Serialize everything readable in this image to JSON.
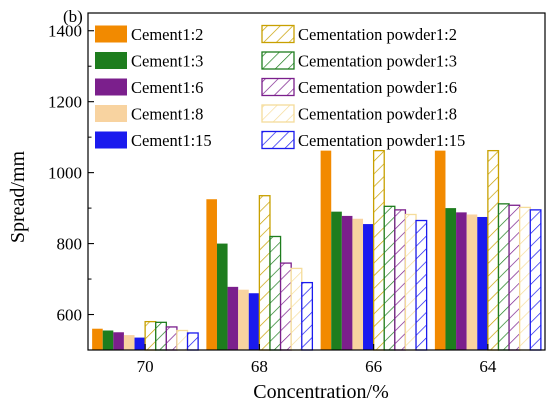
{
  "panel_label": "(b)",
  "chart_data": {
    "type": "bar",
    "xlabel": "Concentration/%",
    "ylabel": "Spread/mm",
    "categories": [
      "70",
      "68",
      "66",
      "64"
    ],
    "ylim": [
      500,
      1450
    ],
    "yticks": [
      600,
      800,
      1000,
      1200,
      1400
    ],
    "grid": false,
    "legend_position": "top",
    "series": [
      {
        "name": "Cement1:2",
        "color": "#f28a00",
        "pattern": "solid",
        "values": [
          560,
          925,
          1062,
          1062
        ]
      },
      {
        "name": "Cement1:3",
        "color": "#1e7d1e",
        "pattern": "solid",
        "values": [
          555,
          800,
          890,
          900
        ]
      },
      {
        "name": "Cement1:6",
        "color": "#7b1f8c",
        "pattern": "solid",
        "values": [
          550,
          678,
          878,
          888
        ]
      },
      {
        "name": "Cement1:8",
        "color": "#f8d3a0",
        "pattern": "solid",
        "values": [
          542,
          670,
          870,
          882
        ]
      },
      {
        "name": "Cement1:15",
        "color": "#1a1aee",
        "pattern": "solid",
        "values": [
          535,
          660,
          855,
          875
        ]
      },
      {
        "name": "Cementation powder1:2",
        "color": "#c8a000",
        "pattern": "hatched",
        "values": [
          580,
          935,
          1062,
          1062
        ]
      },
      {
        "name": "Cementation powder1:3",
        "color": "#1e7d1e",
        "pattern": "hatched",
        "values": [
          578,
          820,
          905,
          912
        ]
      },
      {
        "name": "Cementation powder1:6",
        "color": "#7b1f8c",
        "pattern": "hatched",
        "values": [
          565,
          745,
          895,
          908
        ]
      },
      {
        "name": "Cementation powder1:8",
        "color": "#f5dc9a",
        "pattern": "hatched",
        "values": [
          555,
          730,
          882,
          902
        ]
      },
      {
        "name": "Cementation powder1:15",
        "color": "#1a1aee",
        "pattern": "hatched",
        "values": [
          548,
          690,
          865,
          895
        ]
      }
    ]
  }
}
